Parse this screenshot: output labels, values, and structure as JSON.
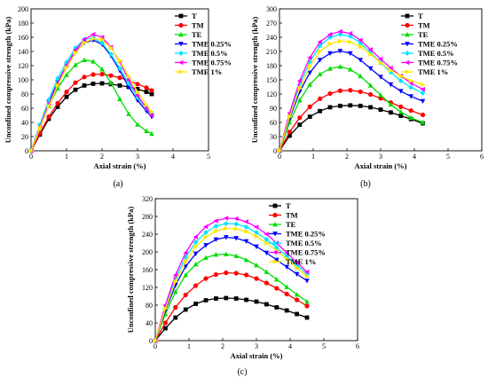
{
  "chart_data": [
    {
      "panel_label": "(a)",
      "type": "line",
      "xlabel": "Axial strain (%)",
      "ylabel": "Unconfined compressive strength (kPa)",
      "xlim": [
        0,
        5
      ],
      "ylim": [
        0,
        200
      ],
      "xticks": [
        "0",
        "1",
        "2",
        "3",
        "4",
        "5"
      ],
      "yticks": [
        "0",
        "20",
        "40",
        "60",
        "80",
        "100",
        "120",
        "140",
        "160",
        "180",
        "200"
      ],
      "grid": false,
      "legend_position": "top-right",
      "series": [
        {
          "name": "T",
          "color": "#000000",
          "marker": "square",
          "x": [
            0,
            0.25,
            0.5,
            0.75,
            1.0,
            1.25,
            1.5,
            1.75,
            2.0,
            2.25,
            2.5,
            2.75,
            3.0,
            3.25,
            3.4
          ],
          "y": [
            0,
            23,
            45,
            62,
            76,
            86,
            92,
            94.5,
            95,
            94,
            92,
            90,
            87,
            83,
            80
          ]
        },
        {
          "name": "TM",
          "color": "#ff0000",
          "marker": "circle",
          "x": [
            0,
            0.25,
            0.5,
            0.75,
            1.0,
            1.25,
            1.5,
            1.75,
            2.0,
            2.25,
            2.5,
            2.75,
            3.0,
            3.25,
            3.4
          ],
          "y": [
            0,
            25,
            48,
            67,
            83,
            96,
            104,
            107.5,
            108,
            106,
            103,
            99,
            94,
            89,
            85
          ]
        },
        {
          "name": "TE",
          "color": "#00dd00",
          "marker": "triangle-up",
          "x": [
            0,
            0.25,
            0.5,
            0.75,
            1.0,
            1.25,
            1.5,
            1.75,
            2.0,
            2.25,
            2.5,
            2.75,
            3.0,
            3.25,
            3.4
          ],
          "y": [
            0,
            33,
            63,
            88,
            107,
            121,
            128,
            126,
            115,
            96,
            73,
            52,
            37,
            28,
            24
          ]
        },
        {
          "name": "TME 0.25%",
          "color": "#0000ff",
          "marker": "triangle-down",
          "x": [
            0,
            0.25,
            0.5,
            0.75,
            1.0,
            1.25,
            1.5,
            1.75,
            2.0,
            2.25,
            2.5,
            2.75,
            3.0,
            3.25,
            3.4
          ],
          "y": [
            0,
            35,
            68,
            97,
            120,
            140,
            152,
            156,
            150,
            134,
            113,
            90,
            71,
            56,
            48
          ]
        },
        {
          "name": "TME 0.5%",
          "color": "#00e5ff",
          "marker": "diamond",
          "x": [
            0,
            0.25,
            0.5,
            0.75,
            1.0,
            1.25,
            1.5,
            1.75,
            2.0,
            2.25,
            2.5,
            2.75,
            3.0,
            3.25,
            3.4
          ],
          "y": [
            0,
            37,
            72,
            102,
            125,
            145,
            157,
            159,
            152,
            136,
            116,
            95,
            75,
            60,
            52
          ]
        },
        {
          "name": "TME 0.75%",
          "color": "#ff00ff",
          "marker": "triangle-left",
          "x": [
            0,
            0.25,
            0.5,
            0.75,
            1.0,
            1.25,
            1.5,
            1.75,
            2.0,
            2.25,
            2.5,
            2.75,
            3.0,
            3.25,
            3.4
          ],
          "y": [
            0,
            34,
            66,
            95,
            120,
            142,
            157,
            164,
            160,
            146,
            125,
            100,
            78,
            60,
            50
          ]
        },
        {
          "name": "TME 1%",
          "color": "#ffe800",
          "marker": "triangle-right",
          "x": [
            0,
            0.25,
            0.5,
            0.75,
            1.0,
            1.25,
            1.5,
            1.75,
            2.0,
            2.25,
            2.5,
            2.75,
            3.0,
            3.25,
            3.4
          ],
          "y": [
            0,
            32,
            63,
            92,
            117,
            138,
            152,
            158,
            157,
            145,
            127,
            105,
            83,
            65,
            55
          ]
        }
      ]
    },
    {
      "panel_label": "(b)",
      "type": "line",
      "xlabel": "Axial strain (%)",
      "ylabel": "Unconfined compressive strength (kPa)",
      "xlim": [
        0,
        6
      ],
      "ylim": [
        0,
        300
      ],
      "xticks": [
        "0",
        "1",
        "2",
        "3",
        "4",
        "5",
        "6"
      ],
      "yticks": [
        "0",
        "30",
        "60",
        "90",
        "120",
        "150",
        "180",
        "210",
        "240",
        "270",
        "300"
      ],
      "grid": false,
      "legend_position": "top-right",
      "series": [
        {
          "name": "T",
          "color": "#000000",
          "marker": "square",
          "x": [
            0,
            0.3,
            0.6,
            0.9,
            1.2,
            1.5,
            1.8,
            2.1,
            2.4,
            2.7,
            3.0,
            3.3,
            3.6,
            3.9,
            4.25
          ],
          "y": [
            0,
            32,
            55,
            72,
            84,
            92,
            95,
            96,
            95,
            92,
            87,
            81,
            74,
            67,
            58
          ]
        },
        {
          "name": "TM",
          "color": "#ff0000",
          "marker": "circle",
          "x": [
            0,
            0.3,
            0.6,
            0.9,
            1.2,
            1.5,
            1.8,
            2.1,
            2.4,
            2.7,
            3.0,
            3.3,
            3.6,
            3.9,
            4.25
          ],
          "y": [
            0,
            40,
            70,
            93,
            110,
            121,
            127,
            128,
            125,
            119,
            111,
            102,
            93,
            85,
            76
          ]
        },
        {
          "name": "TE",
          "color": "#00dd00",
          "marker": "triangle-up",
          "x": [
            0,
            0.3,
            0.6,
            0.9,
            1.2,
            1.5,
            1.8,
            2.1,
            2.4,
            2.7,
            3.0,
            3.3,
            3.6,
            3.9,
            4.25
          ],
          "y": [
            0,
            60,
            107,
            140,
            162,
            174,
            178,
            172,
            158,
            138,
            118,
            98,
            82,
            70,
            60
          ]
        },
        {
          "name": "TME 0.25%",
          "color": "#0000ff",
          "marker": "triangle-down",
          "x": [
            0,
            0.3,
            0.6,
            0.9,
            1.2,
            1.5,
            1.8,
            2.1,
            2.4,
            2.7,
            3.0,
            3.3,
            3.6,
            3.9,
            4.25
          ],
          "y": [
            0,
            68,
            125,
            165,
            192,
            206,
            211,
            206,
            192,
            174,
            156,
            140,
            126,
            115,
            105
          ]
        },
        {
          "name": "TME 0.5%",
          "color": "#00e5ff",
          "marker": "diamond",
          "x": [
            0,
            0.3,
            0.6,
            0.9,
            1.2,
            1.5,
            1.8,
            2.1,
            2.4,
            2.7,
            3.0,
            3.3,
            3.6,
            3.9,
            4.25
          ],
          "y": [
            0,
            75,
            140,
            188,
            222,
            240,
            246,
            242,
            228,
            208,
            186,
            166,
            148,
            134,
            122
          ]
        },
        {
          "name": "TME 0.75%",
          "color": "#ff00ff",
          "marker": "triangle-left",
          "x": [
            0,
            0.3,
            0.6,
            0.9,
            1.2,
            1.5,
            1.8,
            2.1,
            2.4,
            2.7,
            3.0,
            3.3,
            3.6,
            3.9,
            4.25
          ],
          "y": [
            0,
            80,
            148,
            197,
            230,
            246,
            252,
            248,
            234,
            214,
            194,
            175,
            158,
            143,
            130
          ]
        },
        {
          "name": "TME 1%",
          "color": "#ffe800",
          "marker": "triangle-right",
          "x": [
            0,
            0.3,
            0.6,
            0.9,
            1.2,
            1.5,
            1.8,
            2.1,
            2.4,
            2.7,
            3.0,
            3.3,
            3.6,
            3.9,
            4.25
          ],
          "y": [
            0,
            72,
            132,
            178,
            210,
            226,
            232,
            230,
            220,
            204,
            186,
            170,
            158,
            148,
            140
          ]
        }
      ]
    },
    {
      "panel_label": "(c)",
      "type": "line",
      "xlabel": "Axial strain (%)",
      "ylabel": "Unconfined compressive strength (kPa)",
      "xlim": [
        0,
        6
      ],
      "ylim": [
        0,
        320
      ],
      "xticks": [
        "0",
        "1",
        "2",
        "3",
        "4",
        "5",
        "6"
      ],
      "yticks": [
        "0",
        "40",
        "80",
        "120",
        "160",
        "200",
        "240",
        "280",
        "320"
      ],
      "grid": false,
      "legend_position": "top-right",
      "series": [
        {
          "name": "T",
          "color": "#000000",
          "marker": "square",
          "x": [
            0,
            0.3,
            0.6,
            0.9,
            1.2,
            1.5,
            1.8,
            2.1,
            2.4,
            2.7,
            3.0,
            3.3,
            3.6,
            3.9,
            4.2,
            4.5
          ],
          "y": [
            0,
            28,
            52,
            70,
            83,
            91,
            95,
            96,
            95,
            92,
            88,
            82,
            75,
            68,
            60,
            52
          ]
        },
        {
          "name": "TM",
          "color": "#ff0000",
          "marker": "circle",
          "x": [
            0,
            0.3,
            0.6,
            0.9,
            1.2,
            1.5,
            1.8,
            2.1,
            2.4,
            2.7,
            3.0,
            3.3,
            3.6,
            3.9,
            4.2,
            4.5
          ],
          "y": [
            0,
            40,
            75,
            103,
            124,
            140,
            149,
            153,
            152,
            148,
            140,
            130,
            118,
            105,
            92,
            78
          ]
        },
        {
          "name": "TE",
          "color": "#00dd00",
          "marker": "triangle-up",
          "x": [
            0,
            0.3,
            0.6,
            0.9,
            1.2,
            1.5,
            1.8,
            2.1,
            2.4,
            2.7,
            3.0,
            3.3,
            3.6,
            3.9,
            4.2,
            4.5
          ],
          "y": [
            0,
            60,
            110,
            148,
            172,
            187,
            194,
            195,
            191,
            182,
            170,
            155,
            138,
            121,
            104,
            88
          ]
        },
        {
          "name": "TME 0.25%",
          "color": "#0000ff",
          "marker": "triangle-down",
          "x": [
            0,
            0.3,
            0.6,
            0.9,
            1.2,
            1.5,
            1.8,
            2.1,
            2.4,
            2.7,
            3.0,
            3.3,
            3.6,
            3.9,
            4.2,
            4.5
          ],
          "y": [
            0,
            68,
            125,
            167,
            196,
            215,
            228,
            233,
            231,
            224,
            212,
            198,
            182,
            166,
            150,
            135
          ]
        },
        {
          "name": "TME 0.5%",
          "color": "#00e5ff",
          "marker": "diamond",
          "x": [
            0,
            0.3,
            0.6,
            0.9,
            1.2,
            1.5,
            1.8,
            2.1,
            2.4,
            2.7,
            3.0,
            3.3,
            3.6,
            3.9,
            4.2,
            4.5
          ],
          "y": [
            0,
            76,
            140,
            188,
            222,
            244,
            258,
            264,
            263,
            256,
            244,
            228,
            210,
            190,
            170,
            150
          ]
        },
        {
          "name": "TME 0.75%",
          "color": "#ff00ff",
          "marker": "triangle-left",
          "x": [
            0,
            0.3,
            0.6,
            0.9,
            1.2,
            1.5,
            1.8,
            2.1,
            2.4,
            2.7,
            3.0,
            3.3,
            3.6,
            3.9,
            4.2,
            4.5
          ],
          "y": [
            0,
            80,
            148,
            198,
            234,
            257,
            270,
            276,
            275,
            268,
            256,
            240,
            220,
            198,
            176,
            155
          ]
        },
        {
          "name": "TME 1%",
          "color": "#ffe800",
          "marker": "triangle-right",
          "x": [
            0,
            0.3,
            0.6,
            0.9,
            1.2,
            1.5,
            1.8,
            2.1,
            2.4,
            2.7,
            3.0,
            3.3,
            3.6,
            3.9,
            4.2,
            4.5
          ],
          "y": [
            0,
            72,
            133,
            178,
            212,
            234,
            247,
            253,
            252,
            246,
            235,
            220,
            203,
            184,
            164,
            145
          ]
        }
      ]
    }
  ]
}
